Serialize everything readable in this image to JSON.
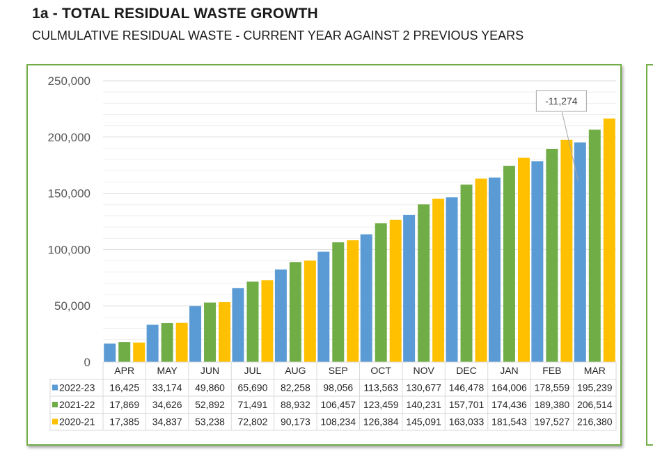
{
  "page": {
    "title": "1a - TOTAL RESIDUAL WASTE GROWTH",
    "subtitle": "CULMULATIVE RESIDUAL WASTE - CURRENT YEAR AGAINST 2 PREVIOUS YEARS"
  },
  "chart_data": {
    "type": "bar",
    "title": "",
    "xlabel": "",
    "ylabel": "",
    "categories": [
      "APR",
      "MAY",
      "JUN",
      "JUL",
      "AUG",
      "SEP",
      "OCT",
      "NOV",
      "DEC",
      "JAN",
      "FEB",
      "MAR"
    ],
    "series": [
      {
        "name": "2022-23",
        "color": "#5b9bd5",
        "values": [
          16425,
          33174,
          49860,
          65690,
          82258,
          98056,
          113563,
          130677,
          146478,
          164006,
          178559,
          195239
        ],
        "labels": [
          "16,425",
          "33,174",
          "49,860",
          "65,690",
          "82,258",
          "98,056",
          "113,563",
          "130,677",
          "146,478",
          "164,006",
          "178,559",
          "195,239"
        ]
      },
      {
        "name": "2021-22",
        "color": "#70ad47",
        "values": [
          17869,
          34626,
          52892,
          71491,
          88932,
          106457,
          123459,
          140231,
          157701,
          174436,
          189380,
          206514
        ],
        "labels": [
          "17,869",
          "34,626",
          "52,892",
          "71,491",
          "88,932",
          "106,457",
          "123,459",
          "140,231",
          "157,701",
          "174,436",
          "189,380",
          "206,514"
        ]
      },
      {
        "name": "2020-21",
        "color": "#ffc000",
        "values": [
          17385,
          34837,
          53238,
          72802,
          90173,
          108234,
          126384,
          145091,
          163033,
          181543,
          197527,
          216380
        ],
        "labels": [
          "17,385",
          "34,837",
          "53,238",
          "72,802",
          "90,173",
          "108,234",
          "126,384",
          "145,091",
          "163,033",
          "181,543",
          "197,527",
          "216,380"
        ]
      }
    ],
    "ylim": [
      0,
      250000
    ],
    "yticks": [
      0,
      50000,
      100000,
      150000,
      200000,
      250000
    ],
    "ytick_labels": [
      "0",
      "50,000",
      "100,000",
      "150,000",
      "200,000",
      "250,000"
    ],
    "grid": true,
    "legend": "data-table",
    "annotation": {
      "text": "-11,274",
      "category": "FEB"
    },
    "frame_color": "#72ad47"
  }
}
